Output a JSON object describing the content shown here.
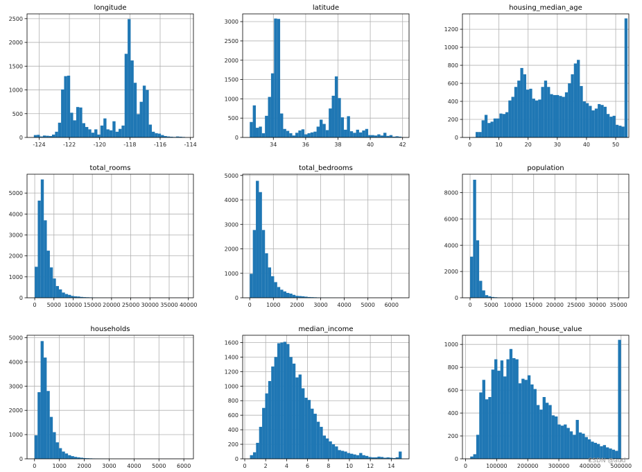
{
  "chart_data": [
    {
      "type": "bar",
      "title": "longitude",
      "xlim": [
        -124.8,
        -113.8
      ],
      "ylim": [
        0,
        2600
      ],
      "xticks": [
        -124,
        -122,
        -120,
        -118,
        -116,
        -114
      ],
      "yticks": [
        0,
        500,
        1000,
        1500,
        2000,
        2500
      ],
      "bin_start": -124.35,
      "bin_width": 0.2,
      "values": [
        50,
        55,
        20,
        40,
        35,
        30,
        60,
        120,
        310,
        1010,
        1290,
        1300,
        520,
        360,
        640,
        630,
        300,
        220,
        170,
        100,
        170,
        60,
        250,
        400,
        170,
        150,
        340,
        120,
        180,
        250,
        1760,
        2490,
        1620,
        1150,
        490,
        750,
        1090,
        1000,
        270,
        120,
        90,
        80,
        50,
        30,
        20,
        15,
        10,
        20,
        15,
        10
      ]
    },
    {
      "type": "bar",
      "title": "latitude",
      "xlim": [
        32.1,
        42.4
      ],
      "ylim": [
        0,
        3200
      ],
      "xticks": [
        34,
        36,
        38,
        40,
        42
      ],
      "yticks": [
        0,
        500,
        1000,
        1500,
        2000,
        2500,
        3000
      ],
      "bin_start": 32.54,
      "bin_width": 0.188,
      "values": [
        400,
        830,
        250,
        280,
        110,
        560,
        1050,
        1660,
        3080,
        3070,
        620,
        220,
        170,
        110,
        50,
        120,
        180,
        210,
        80,
        110,
        130,
        150,
        280,
        460,
        350,
        190,
        750,
        1080,
        1580,
        1020,
        520,
        200,
        550,
        160,
        120,
        200,
        130,
        180,
        220,
        60,
        60,
        50,
        80,
        50,
        120,
        40,
        60,
        20,
        30,
        20
      ]
    },
    {
      "type": "bar",
      "title": "housing_median_age",
      "xlim": [
        -2.5,
        54.5
      ],
      "ylim": [
        0,
        1370
      ],
      "xticks": [
        0,
        10,
        20,
        30,
        40,
        50
      ],
      "yticks": [
        0,
        200,
        400,
        600,
        800,
        1000,
        1200
      ],
      "bin_start": 1,
      "bin_width": 1.02,
      "values": [
        4,
        60,
        60,
        190,
        250,
        160,
        175,
        210,
        210,
        265,
        260,
        280,
        410,
        450,
        560,
        630,
        770,
        700,
        530,
        540,
        430,
        410,
        420,
        560,
        630,
        560,
        480,
        470,
        470,
        460,
        450,
        500,
        600,
        700,
        820,
        860,
        570,
        400,
        380,
        350,
        300,
        320,
        370,
        360,
        340,
        260,
        230,
        240,
        140,
        130,
        120,
        1320
      ]
    },
    {
      "type": "bar",
      "title": "total_rooms",
      "xlim": [
        -2000,
        41320
      ],
      "ylim": [
        0,
        5900
      ],
      "xticks": [
        0,
        5000,
        10000,
        15000,
        20000,
        25000,
        30000,
        35000,
        40000
      ],
      "xticklabels": [
        "0",
        "5000",
        "10000",
        "15000",
        "20000",
        "25000",
        "30000",
        "35000",
        "40000"
      ],
      "yticks": [
        0,
        1000,
        2000,
        3000,
        4000,
        5000
      ],
      "bin_start": 2,
      "bin_width": 787.7,
      "values": [
        1480,
        4640,
        5650,
        3700,
        2250,
        1450,
        920,
        560,
        400,
        250,
        180,
        140,
        90,
        70,
        60,
        40,
        30,
        25,
        20,
        15,
        10,
        8,
        6,
        5,
        4,
        3,
        3,
        2,
        2,
        2,
        1,
        1,
        1,
        1,
        1,
        1,
        1,
        1,
        1,
        1,
        1,
        1,
        1,
        1,
        1,
        1,
        1,
        1,
        1,
        1
      ]
    },
    {
      "type": "bar",
      "title": "total_bedrooms",
      "xlim": [
        -300,
        6740
      ],
      "ylim": [
        0,
        5050
      ],
      "xticks": [
        0,
        1000,
        2000,
        3000,
        4000,
        5000,
        6000
      ],
      "yticks": [
        0,
        1000,
        2000,
        3000,
        4000,
        5000
      ],
      "bin_start": 1,
      "bin_width": 128.9,
      "values": [
        980,
        2770,
        4780,
        4320,
        2770,
        1820,
        1240,
        880,
        640,
        440,
        330,
        260,
        200,
        170,
        120,
        80,
        70,
        60,
        45,
        30,
        25,
        20,
        15,
        12,
        10,
        8,
        6,
        5,
        4,
        3,
        3,
        2,
        2,
        2,
        1,
        1,
        1,
        1,
        1,
        1,
        1,
        1,
        1,
        1,
        1,
        1,
        1,
        1,
        1,
        1
      ]
    },
    {
      "type": "bar",
      "title": "population",
      "xlim": [
        -1800,
        37450
      ],
      "ylim": [
        0,
        9400
      ],
      "xticks": [
        0,
        5000,
        10000,
        15000,
        20000,
        25000,
        30000,
        35000
      ],
      "xticklabels": [
        "0",
        "5000",
        "10000",
        "15000",
        "20000",
        "25000",
        "30000",
        "35000"
      ],
      "yticks": [
        0,
        2000,
        4000,
        6000,
        8000
      ],
      "bin_start": 3,
      "bin_width": 713.5,
      "values": [
        3130,
        8980,
        4370,
        1290,
        560,
        200,
        110,
        60,
        40,
        25,
        15,
        10,
        8,
        6,
        4,
        3,
        2,
        2,
        1,
        1,
        1,
        1,
        1,
        1,
        1,
        1,
        1,
        1,
        1,
        1,
        1,
        1,
        1,
        1,
        1,
        1,
        1,
        1,
        1,
        1,
        1,
        1,
        1,
        1,
        1,
        1,
        1,
        1,
        1,
        1
      ]
    },
    {
      "type": "bar",
      "title": "households",
      "xlim": [
        -300,
        6385
      ],
      "ylim": [
        0,
        5100
      ],
      "xticks": [
        0,
        1000,
        2000,
        3000,
        4000,
        5000,
        6000
      ],
      "yticks": [
        0,
        1000,
        2000,
        3000,
        4000,
        5000
      ],
      "bin_start": 1,
      "bin_width": 122.3,
      "values": [
        970,
        2750,
        4860,
        4180,
        2800,
        1730,
        1100,
        680,
        440,
        300,
        220,
        150,
        110,
        80,
        60,
        45,
        30,
        25,
        20,
        15,
        12,
        10,
        8,
        6,
        5,
        4,
        3,
        3,
        2,
        2,
        2,
        1,
        1,
        1,
        1,
        1,
        1,
        1,
        1,
        1,
        1,
        1,
        1,
        1,
        1,
        1,
        1,
        1,
        1,
        1
      ]
    },
    {
      "type": "bar",
      "title": "median_income",
      "xlim": [
        -0.2,
        15.7
      ],
      "ylim": [
        0,
        1700
      ],
      "xticks": [
        0,
        2,
        4,
        6,
        8,
        10,
        12,
        14
      ],
      "yticks": [
        0,
        200,
        400,
        600,
        800,
        1000,
        1200,
        1400,
        1600
      ],
      "bin_start": 0.5,
      "bin_width": 0.29,
      "values": [
        50,
        90,
        220,
        440,
        700,
        900,
        1070,
        1270,
        1400,
        1590,
        1600,
        1610,
        1580,
        1400,
        1310,
        1120,
        1160,
        970,
        840,
        810,
        690,
        620,
        510,
        440,
        320,
        280,
        240,
        200,
        170,
        120,
        110,
        100,
        80,
        70,
        60,
        50,
        80,
        50,
        40,
        25,
        20,
        20,
        30,
        25,
        15,
        20,
        15,
        10,
        20,
        100
      ]
    },
    {
      "type": "bar",
      "title": "median_house_value",
      "xlim": [
        -10000,
        525000
      ],
      "ylim": [
        0,
        1080
      ],
      "xticks": [
        0,
        100000,
        200000,
        300000,
        400000,
        500000
      ],
      "xticklabels": [
        "0",
        "100000",
        "200000",
        "300000",
        "400000",
        "500000"
      ],
      "yticks": [
        0,
        200,
        400,
        600,
        800,
        1000
      ],
      "bin_start": 14999,
      "bin_width": 9700,
      "values": [
        20,
        40,
        210,
        580,
        690,
        520,
        540,
        780,
        870,
        770,
        860,
        720,
        870,
        960,
        880,
        870,
        660,
        700,
        690,
        730,
        650,
        610,
        470,
        430,
        540,
        490,
        470,
        380,
        370,
        300,
        290,
        300,
        270,
        240,
        210,
        340,
        230,
        220,
        190,
        170,
        150,
        140,
        130,
        110,
        120,
        100,
        90,
        80,
        70,
        1040
      ]
    }
  ],
  "watermark": "CSDN @aud"
}
